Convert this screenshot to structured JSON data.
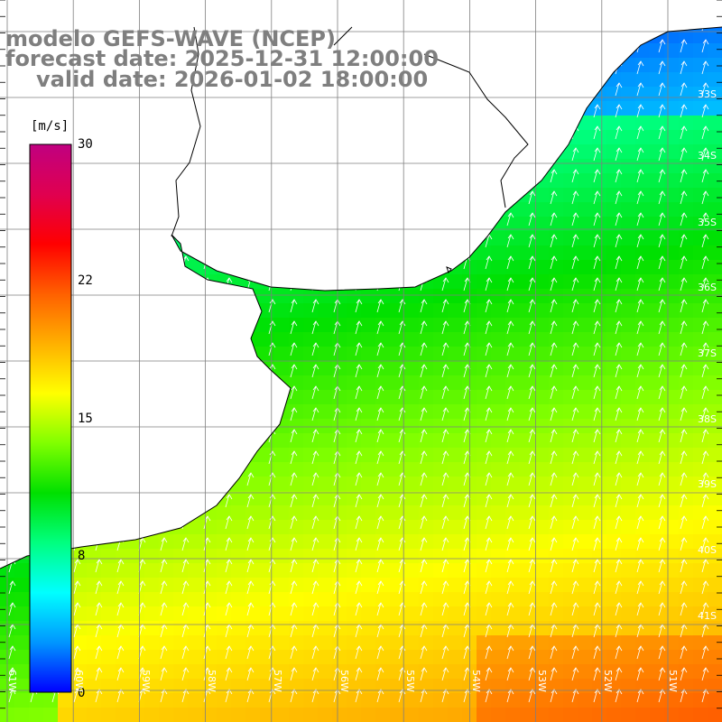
{
  "title": {
    "line1": "modelo GEFS-WAVE (NCEP)",
    "line2": "forecast date: 2025-12-31 12:00:00",
    "line3": "valid date: 2026-01-02 18:00:00"
  },
  "colorbar": {
    "unit": "[m/s]",
    "ticks": [
      "30",
      "22",
      "15",
      "8",
      "0"
    ],
    "min": 0,
    "max": 30,
    "colors": [
      "#0000ff",
      "#0096ff",
      "#00ffff",
      "#00ff80",
      "#00e000",
      "#80ff00",
      "#ffff00",
      "#ffb000",
      "#ff6000",
      "#ff0000",
      "#e00050",
      "#c00080"
    ]
  },
  "map": {
    "lat_labels": [
      "33S",
      "34S",
      "35S",
      "36S",
      "37S",
      "38S",
      "39S",
      "40S",
      "41S"
    ],
    "lon_labels": [
      "61W",
      "60W",
      "59W",
      "58W",
      "57W",
      "56W",
      "55W",
      "54W",
      "53W",
      "52W",
      "51W"
    ],
    "land_color": "#ffffff",
    "grid_color": "#7f7f7f",
    "arrow_direction": "south-to-north (wind toward NNE)"
  }
}
